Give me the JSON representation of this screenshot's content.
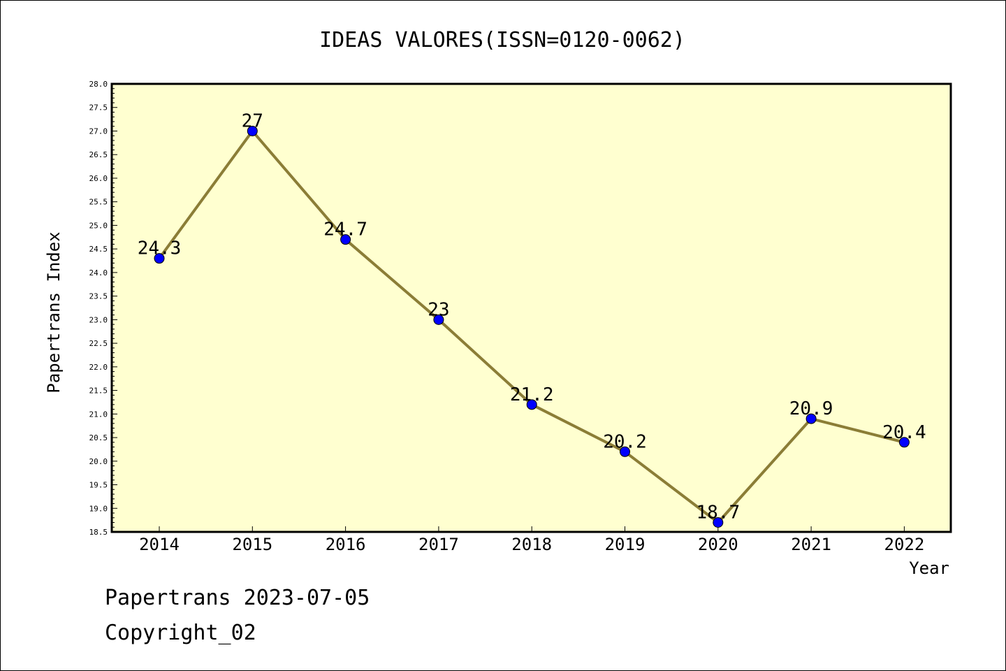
{
  "chart_data": {
    "type": "line",
    "title": "IDEAS VALORES(ISSN=0120-0062)",
    "xlabel": "Year",
    "ylabel": "Papertrans Index",
    "categories": [
      "2014",
      "2015",
      "2016",
      "2017",
      "2018",
      "2019",
      "2020",
      "2021",
      "2022"
    ],
    "series": [
      {
        "values": [
          24.3,
          27,
          24.7,
          23,
          21.2,
          20.2,
          18.7,
          20.9,
          20.4
        ]
      }
    ],
    "data_labels": [
      "24.3",
      "27",
      "24.7",
      "23",
      "21.2",
      "20.2",
      "18.7",
      "20.9",
      "20.4"
    ],
    "ylim": [
      18.5,
      28.0
    ],
    "y_ticks": [
      "18.5",
      "19.0",
      "19.5",
      "20.0",
      "20.5",
      "21.0",
      "21.5",
      "22.0",
      "22.5",
      "23.0",
      "23.5",
      "24.0",
      "24.5",
      "25.0",
      "25.5",
      "26.0",
      "26.5",
      "27.0",
      "27.5",
      "28.0"
    ],
    "grid": false,
    "legend": "none",
    "colors": {
      "line": "#8b7d36",
      "marker": "#0000ff",
      "plot_bg": "#ffffd0"
    }
  },
  "footer": {
    "line1": "Papertrans 2023-07-05",
    "line2": "Copyright_02"
  }
}
